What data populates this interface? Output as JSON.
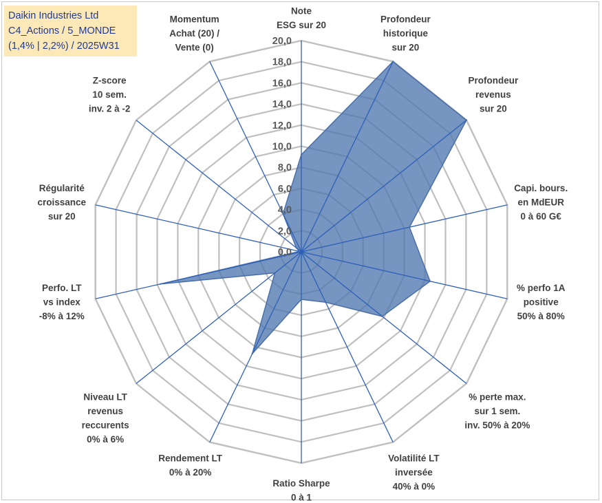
{
  "title_box": {
    "line1": "Daikin Industries Ltd",
    "line2": "C4_Actions / 5_MONDE",
    "line3": "(1,4% | 2,2%) / 2025W31"
  },
  "chart_data": {
    "type": "radar",
    "rmin": 0,
    "rmax": 20,
    "grid": true,
    "ticks": [
      "0,0",
      "2,0",
      "4,0",
      "6,0",
      "8,0",
      "10,0",
      "12,0",
      "14,0",
      "16,0",
      "18,0",
      "20,0"
    ],
    "axes": [
      [
        "Note",
        "ESG sur 20"
      ],
      [
        "Profondeur",
        "historique",
        "sur 20"
      ],
      [
        "Profondeur",
        "revenus",
        "sur 20"
      ],
      [
        "Capi. bours.",
        "en MdEUR",
        "0 à 60 G€"
      ],
      [
        "% perfo 1A",
        "positive",
        "50% à 80%"
      ],
      [
        "% perte max.",
        "sur 1 sem.",
        "inv. 50% à 20%"
      ],
      [
        "Volatilité LT",
        "inversée",
        "40% à 0%"
      ],
      [
        "Ratio Sharpe",
        "0 à 1"
      ],
      [
        "Rendement LT",
        "0% à 20%"
      ],
      [
        "Niveau LT",
        "revenus",
        "reccurents",
        "0% à 6%"
      ],
      [
        "Perfo. LT",
        "vs index",
        "-8% à 12%"
      ],
      [
        "Régularité",
        "croissance",
        "sur 20"
      ],
      [
        "Z-score",
        "10 sem.",
        "inv. 2 à -2"
      ],
      [
        "Momentum",
        "Achat (20) /",
        "Vente (0)"
      ]
    ],
    "series": [
      {
        "values": [
          9.2,
          20.0,
          20.0,
          10.5,
          12.5,
          9.8,
          5.3,
          4.5,
          10.7,
          3.2,
          13.7,
          0.2,
          0.6,
          4.0
        ]
      }
    ],
    "colors": {
      "fill": "#4f78b0",
      "fill_opacity": 0.78,
      "stroke": "#4a6fa8",
      "spoke": "#2e5fb8",
      "grid": "#bfbfbf"
    }
  }
}
